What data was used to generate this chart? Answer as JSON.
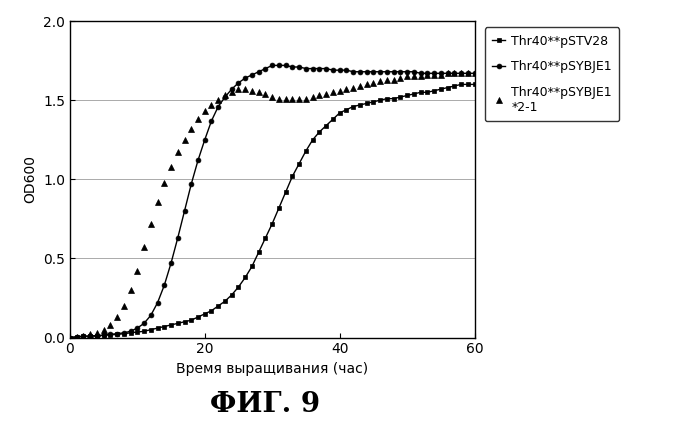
{
  "title": "ФИГ. 9",
  "xlabel": "Время выращивания (час)",
  "ylabel": "OD600",
  "xlim": [
    0,
    60
  ],
  "ylim": [
    0,
    2
  ],
  "yticks": [
    0,
    0.5,
    1,
    1.5,
    2
  ],
  "xticks": [
    0,
    20,
    40,
    60
  ],
  "bg_color": "#ffffff",
  "series": [
    {
      "label": "Thr40**pSTV28",
      "marker": "s",
      "linestyle": "-",
      "markersize": 3.5,
      "markevery": 1,
      "x": [
        0,
        1,
        2,
        3,
        4,
        5,
        6,
        7,
        8,
        9,
        10,
        11,
        12,
        13,
        14,
        15,
        16,
        17,
        18,
        19,
        20,
        21,
        22,
        23,
        24,
        25,
        26,
        27,
        28,
        29,
        30,
        31,
        32,
        33,
        34,
        35,
        36,
        37,
        38,
        39,
        40,
        41,
        42,
        43,
        44,
        45,
        46,
        47,
        48,
        49,
        50,
        51,
        52,
        53,
        54,
        55,
        56,
        57,
        58,
        59,
        60
      ],
      "y": [
        0.0,
        0.005,
        0.008,
        0.01,
        0.012,
        0.015,
        0.018,
        0.02,
        0.025,
        0.03,
        0.035,
        0.04,
        0.05,
        0.06,
        0.07,
        0.08,
        0.09,
        0.1,
        0.11,
        0.13,
        0.15,
        0.17,
        0.2,
        0.23,
        0.27,
        0.32,
        0.38,
        0.45,
        0.54,
        0.63,
        0.72,
        0.82,
        0.92,
        1.02,
        1.1,
        1.18,
        1.25,
        1.3,
        1.34,
        1.38,
        1.42,
        1.44,
        1.46,
        1.47,
        1.48,
        1.49,
        1.5,
        1.51,
        1.51,
        1.52,
        1.53,
        1.54,
        1.55,
        1.55,
        1.56,
        1.57,
        1.58,
        1.59,
        1.6,
        1.6,
        1.6
      ]
    },
    {
      "label": "Thr40**pSYBJE1",
      "marker": "o",
      "linestyle": "-",
      "markersize": 3.5,
      "markevery": 1,
      "x": [
        0,
        1,
        2,
        3,
        4,
        5,
        6,
        7,
        8,
        9,
        10,
        11,
        12,
        13,
        14,
        15,
        16,
        17,
        18,
        19,
        20,
        21,
        22,
        23,
        24,
        25,
        26,
        27,
        28,
        29,
        30,
        31,
        32,
        33,
        34,
        35,
        36,
        37,
        38,
        39,
        40,
        41,
        42,
        43,
        44,
        45,
        46,
        47,
        48,
        49,
        50,
        51,
        52,
        53,
        54,
        55,
        56,
        57,
        58,
        59,
        60
      ],
      "y": [
        0.0,
        0.005,
        0.008,
        0.01,
        0.012,
        0.015,
        0.02,
        0.025,
        0.03,
        0.04,
        0.06,
        0.09,
        0.14,
        0.22,
        0.33,
        0.47,
        0.63,
        0.8,
        0.97,
        1.12,
        1.25,
        1.37,
        1.46,
        1.52,
        1.57,
        1.61,
        1.64,
        1.66,
        1.68,
        1.7,
        1.72,
        1.72,
        1.72,
        1.71,
        1.71,
        1.7,
        1.7,
        1.7,
        1.7,
        1.69,
        1.69,
        1.69,
        1.68,
        1.68,
        1.68,
        1.68,
        1.68,
        1.68,
        1.68,
        1.68,
        1.68,
        1.68,
        1.67,
        1.67,
        1.67,
        1.67,
        1.67,
        1.67,
        1.67,
        1.67,
        1.67
      ]
    },
    {
      "label": "Thr40**pSYBJE1\n*2-1",
      "marker": "^",
      "linestyle": "None",
      "markersize": 5,
      "markevery": 1,
      "x": [
        0,
        1,
        2,
        3,
        4,
        5,
        6,
        7,
        8,
        9,
        10,
        11,
        12,
        13,
        14,
        15,
        16,
        17,
        18,
        19,
        20,
        21,
        22,
        23,
        24,
        25,
        26,
        27,
        28,
        29,
        30,
        31,
        32,
        33,
        34,
        35,
        36,
        37,
        38,
        39,
        40,
        41,
        42,
        43,
        44,
        45,
        46,
        47,
        48,
        49,
        50,
        51,
        52,
        53,
        54,
        55,
        56,
        57,
        58,
        59,
        60
      ],
      "y": [
        0.0,
        0.005,
        0.01,
        0.02,
        0.03,
        0.05,
        0.08,
        0.13,
        0.2,
        0.3,
        0.42,
        0.57,
        0.72,
        0.86,
        0.98,
        1.08,
        1.17,
        1.25,
        1.32,
        1.38,
        1.43,
        1.47,
        1.5,
        1.53,
        1.55,
        1.57,
        1.57,
        1.56,
        1.55,
        1.54,
        1.52,
        1.51,
        1.51,
        1.51,
        1.51,
        1.51,
        1.52,
        1.53,
        1.54,
        1.55,
        1.56,
        1.57,
        1.58,
        1.59,
        1.6,
        1.61,
        1.62,
        1.63,
        1.63,
        1.64,
        1.65,
        1.65,
        1.65,
        1.66,
        1.66,
        1.66,
        1.67,
        1.67,
        1.67,
        1.67,
        1.67
      ]
    }
  ]
}
